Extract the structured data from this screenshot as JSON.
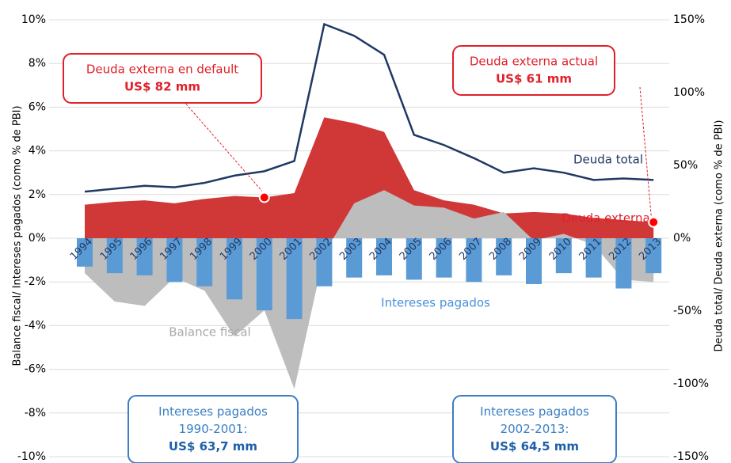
{
  "chart_data": {
    "type": "combo",
    "y_label": "Balance fiscal/ Intereses pagados (como % de PBI)",
    "y2_label": "Deuda total/ Deuda externa (como % de PBI)",
    "categories": [
      "1994",
      "1995",
      "1996",
      "1997",
      "1998",
      "1999",
      "2000",
      "2001",
      "2002",
      "2003",
      "2004",
      "2005",
      "2006",
      "2007",
      "2008",
      "2009",
      "2010",
      "2011",
      "2012",
      "2013"
    ],
    "ylim": [
      -10,
      10
    ],
    "yticks": [
      {
        "value": -10,
        "label": "-10%"
      },
      {
        "value": -8,
        "label": "-8%"
      },
      {
        "value": -6,
        "label": "-6%"
      },
      {
        "value": -4,
        "label": "-4%"
      },
      {
        "value": -2,
        "label": "-2%"
      },
      {
        "value": 0,
        "label": "0%"
      },
      {
        "value": 2,
        "label": "2%"
      },
      {
        "value": 4,
        "label": "4%"
      },
      {
        "value": 6,
        "label": "6%"
      },
      {
        "value": 8,
        "label": "8%"
      },
      {
        "value": 10,
        "label": "10%"
      }
    ],
    "y2lim": [
      -150,
      150
    ],
    "y2ticks": [
      {
        "value": -150,
        "label": "-150%"
      },
      {
        "value": -100,
        "label": "-100%"
      },
      {
        "value": -50,
        "label": "-50%"
      },
      {
        "value": 0,
        "label": "0%"
      },
      {
        "value": 50,
        "label": "50%"
      },
      {
        "value": 100,
        "label": "100%"
      },
      {
        "value": 150,
        "label": "150%"
      }
    ],
    "grid": true,
    "series": [
      {
        "name": "Deuda externa",
        "kind": "area",
        "axis": "y2",
        "color": "#d03838",
        "values": [
          23,
          25,
          26,
          24,
          27,
          29,
          28,
          31,
          83,
          79,
          73,
          33,
          26,
          23,
          17,
          18,
          17,
          14,
          12.5,
          11
        ]
      },
      {
        "name": "Balance fiscal",
        "kind": "area",
        "axis": "y",
        "color": "#bdbdbd",
        "values": [
          -1.6,
          -2.9,
          -3.1,
          -1.8,
          -2.4,
          -4.5,
          -3.3,
          -6.9,
          -0.7,
          1.6,
          2.2,
          1.5,
          1.4,
          0.9,
          1.2,
          -0.1,
          0.2,
          -0.3,
          -1.9,
          -2.0
        ]
      },
      {
        "name": "Intereses pagados",
        "kind": "bar",
        "axis": "y",
        "color": "#5b9bd5",
        "values": [
          -1.3,
          -1.6,
          -1.7,
          -2.0,
          -2.2,
          -2.8,
          -3.3,
          -3.7,
          -2.2,
          -1.8,
          -1.7,
          -1.9,
          -1.8,
          -2.0,
          -1.7,
          -2.1,
          -1.6,
          -1.8,
          -2.3,
          -1.6
        ]
      },
      {
        "name": "Deuda total",
        "kind": "line",
        "axis": "y2",
        "color": "#1f3864",
        "values": [
          32,
          34,
          36,
          35,
          38,
          43,
          46,
          53,
          147,
          139,
          126,
          71,
          64,
          55,
          45,
          48,
          45,
          40,
          41,
          40
        ]
      }
    ],
    "annotations": [
      {
        "lines": [
          "Deuda externa en default",
          "US$ 82 mm"
        ],
        "color": "#e0202a"
      },
      {
        "lines": [
          "Deuda externa actual",
          "US$ 61 mm"
        ],
        "color": "#e0202a"
      },
      {
        "lines": [
          "Intereses pagados",
          "1990-2001:",
          "US$ 63,7 mm"
        ],
        "color": "#3a7fc4"
      },
      {
        "lines": [
          "Intereses pagados",
          "2002-2013:",
          "US$ 64,5 mm"
        ],
        "color": "#3a7fc4"
      }
    ]
  }
}
